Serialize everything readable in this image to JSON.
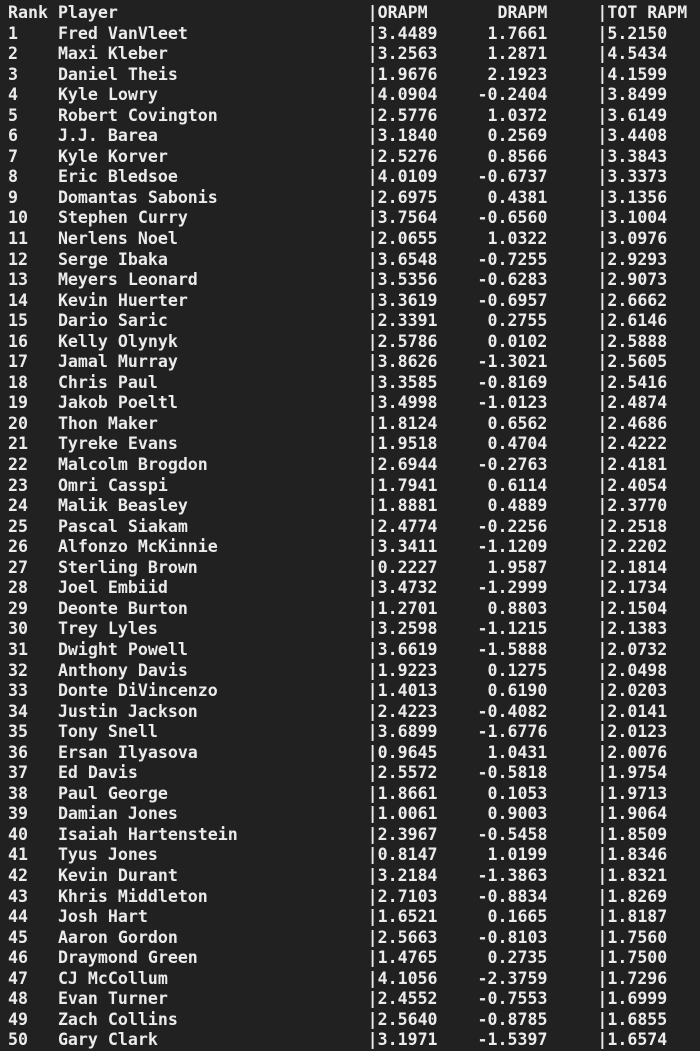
{
  "terminal": {
    "background_color": "#212121",
    "text_color": "#ececec"
  },
  "table": {
    "pipe": "|",
    "columns": {
      "rank": "Rank",
      "player": "Player",
      "orapm": "ORAPM",
      "drapm": "DRAPM",
      "tot_rapm": "TOT RAPM"
    },
    "rows": [
      {
        "rank": "1",
        "player": "Fred VanVleet",
        "orapm": "3.4489",
        "drapm": "1.7661",
        "tot_rapm": "5.2150"
      },
      {
        "rank": "2",
        "player": "Maxi Kleber",
        "orapm": "3.2563",
        "drapm": "1.2871",
        "tot_rapm": "4.5434"
      },
      {
        "rank": "3",
        "player": "Daniel Theis",
        "orapm": "1.9676",
        "drapm": "2.1923",
        "tot_rapm": "4.1599"
      },
      {
        "rank": "4",
        "player": "Kyle Lowry",
        "orapm": "4.0904",
        "drapm": "-0.2404",
        "tot_rapm": "3.8499"
      },
      {
        "rank": "5",
        "player": "Robert Covington",
        "orapm": "2.5776",
        "drapm": "1.0372",
        "tot_rapm": "3.6149"
      },
      {
        "rank": "6",
        "player": "J.J. Barea",
        "orapm": "3.1840",
        "drapm": "0.2569",
        "tot_rapm": "3.4408"
      },
      {
        "rank": "7",
        "player": "Kyle Korver",
        "orapm": "2.5276",
        "drapm": "0.8566",
        "tot_rapm": "3.3843"
      },
      {
        "rank": "8",
        "player": "Eric Bledsoe",
        "orapm": "4.0109",
        "drapm": "-0.6737",
        "tot_rapm": "3.3373"
      },
      {
        "rank": "9",
        "player": "Domantas Sabonis",
        "orapm": "2.6975",
        "drapm": "0.4381",
        "tot_rapm": "3.1356"
      },
      {
        "rank": "10",
        "player": "Stephen Curry",
        "orapm": "3.7564",
        "drapm": "-0.6560",
        "tot_rapm": "3.1004"
      },
      {
        "rank": "11",
        "player": "Nerlens Noel",
        "orapm": "2.0655",
        "drapm": "1.0322",
        "tot_rapm": "3.0976"
      },
      {
        "rank": "12",
        "player": "Serge Ibaka",
        "orapm": "3.6548",
        "drapm": "-0.7255",
        "tot_rapm": "2.9293"
      },
      {
        "rank": "13",
        "player": "Meyers Leonard",
        "orapm": "3.5356",
        "drapm": "-0.6283",
        "tot_rapm": "2.9073"
      },
      {
        "rank": "14",
        "player": "Kevin Huerter",
        "orapm": "3.3619",
        "drapm": "-0.6957",
        "tot_rapm": "2.6662"
      },
      {
        "rank": "15",
        "player": "Dario Saric",
        "orapm": "2.3391",
        "drapm": "0.2755",
        "tot_rapm": "2.6146"
      },
      {
        "rank": "16",
        "player": "Kelly Olynyk",
        "orapm": "2.5786",
        "drapm": "0.0102",
        "tot_rapm": "2.5888"
      },
      {
        "rank": "17",
        "player": "Jamal Murray",
        "orapm": "3.8626",
        "drapm": "-1.3021",
        "tot_rapm": "2.5605"
      },
      {
        "rank": "18",
        "player": "Chris Paul",
        "orapm": "3.3585",
        "drapm": "-0.8169",
        "tot_rapm": "2.5416"
      },
      {
        "rank": "19",
        "player": "Jakob Poeltl",
        "orapm": "3.4998",
        "drapm": "-1.0123",
        "tot_rapm": "2.4874"
      },
      {
        "rank": "20",
        "player": "Thon Maker",
        "orapm": "1.8124",
        "drapm": "0.6562",
        "tot_rapm": "2.4686"
      },
      {
        "rank": "21",
        "player": "Tyreke Evans",
        "orapm": "1.9518",
        "drapm": "0.4704",
        "tot_rapm": "2.4222"
      },
      {
        "rank": "22",
        "player": "Malcolm Brogdon",
        "orapm": "2.6944",
        "drapm": "-0.2763",
        "tot_rapm": "2.4181"
      },
      {
        "rank": "23",
        "player": "Omri Casspi",
        "orapm": "1.7941",
        "drapm": "0.6114",
        "tot_rapm": "2.4054"
      },
      {
        "rank": "24",
        "player": "Malik Beasley",
        "orapm": "1.8881",
        "drapm": "0.4889",
        "tot_rapm": "2.3770"
      },
      {
        "rank": "25",
        "player": "Pascal Siakam",
        "orapm": "2.4774",
        "drapm": "-0.2256",
        "tot_rapm": "2.2518"
      },
      {
        "rank": "26",
        "player": "Alfonzo McKinnie",
        "orapm": "3.3411",
        "drapm": "-1.1209",
        "tot_rapm": "2.2202"
      },
      {
        "rank": "27",
        "player": "Sterling Brown",
        "orapm": "0.2227",
        "drapm": "1.9587",
        "tot_rapm": "2.1814"
      },
      {
        "rank": "28",
        "player": "Joel Embiid",
        "orapm": "3.4732",
        "drapm": "-1.2999",
        "tot_rapm": "2.1734"
      },
      {
        "rank": "29",
        "player": "Deonte Burton",
        "orapm": "1.2701",
        "drapm": "0.8803",
        "tot_rapm": "2.1504"
      },
      {
        "rank": "30",
        "player": "Trey Lyles",
        "orapm": "3.2598",
        "drapm": "-1.1215",
        "tot_rapm": "2.1383"
      },
      {
        "rank": "31",
        "player": "Dwight Powell",
        "orapm": "3.6619",
        "drapm": "-1.5888",
        "tot_rapm": "2.0732"
      },
      {
        "rank": "32",
        "player": "Anthony Davis",
        "orapm": "1.9223",
        "drapm": "0.1275",
        "tot_rapm": "2.0498"
      },
      {
        "rank": "33",
        "player": "Donte DiVincenzo",
        "orapm": "1.4013",
        "drapm": "0.6190",
        "tot_rapm": "2.0203"
      },
      {
        "rank": "34",
        "player": "Justin Jackson",
        "orapm": "2.4223",
        "drapm": "-0.4082",
        "tot_rapm": "2.0141"
      },
      {
        "rank": "35",
        "player": "Tony Snell",
        "orapm": "3.6899",
        "drapm": "-1.6776",
        "tot_rapm": "2.0123"
      },
      {
        "rank": "36",
        "player": "Ersan Ilyasova",
        "orapm": "0.9645",
        "drapm": "1.0431",
        "tot_rapm": "2.0076"
      },
      {
        "rank": "37",
        "player": "Ed Davis",
        "orapm": "2.5572",
        "drapm": "-0.5818",
        "tot_rapm": "1.9754"
      },
      {
        "rank": "38",
        "player": "Paul George",
        "orapm": "1.8661",
        "drapm": "0.1053",
        "tot_rapm": "1.9713"
      },
      {
        "rank": "39",
        "player": "Damian Jones",
        "orapm": "1.0061",
        "drapm": "0.9003",
        "tot_rapm": "1.9064"
      },
      {
        "rank": "40",
        "player": "Isaiah Hartenstein",
        "orapm": "2.3967",
        "drapm": "-0.5458",
        "tot_rapm": "1.8509"
      },
      {
        "rank": "41",
        "player": "Tyus Jones",
        "orapm": "0.8147",
        "drapm": "1.0199",
        "tot_rapm": "1.8346"
      },
      {
        "rank": "42",
        "player": "Kevin Durant",
        "orapm": "3.2184",
        "drapm": "-1.3863",
        "tot_rapm": "1.8321"
      },
      {
        "rank": "43",
        "player": "Khris Middleton",
        "orapm": "2.7103",
        "drapm": "-0.8834",
        "tot_rapm": "1.8269"
      },
      {
        "rank": "44",
        "player": "Josh Hart",
        "orapm": "1.6521",
        "drapm": "0.1665",
        "tot_rapm": "1.8187"
      },
      {
        "rank": "45",
        "player": "Aaron Gordon",
        "orapm": "2.5663",
        "drapm": "-0.8103",
        "tot_rapm": "1.7560"
      },
      {
        "rank": "46",
        "player": "Draymond Green",
        "orapm": "1.4765",
        "drapm": "0.2735",
        "tot_rapm": "1.7500"
      },
      {
        "rank": "47",
        "player": "CJ McCollum",
        "orapm": "4.1056",
        "drapm": "-2.3759",
        "tot_rapm": "1.7296"
      },
      {
        "rank": "48",
        "player": "Evan Turner",
        "orapm": "2.4552",
        "drapm": "-0.7553",
        "tot_rapm": "1.6999"
      },
      {
        "rank": "49",
        "player": "Zach Collins",
        "orapm": "2.5640",
        "drapm": "-0.8785",
        "tot_rapm": "1.6855"
      },
      {
        "rank": "50",
        "player": "Gary Clark",
        "orapm": "3.1971",
        "drapm": "-1.5397",
        "tot_rapm": "1.6574"
      }
    ]
  }
}
